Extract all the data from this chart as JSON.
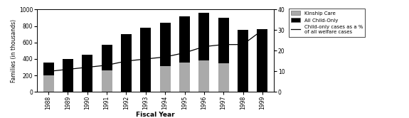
{
  "years": [
    1988,
    1989,
    1990,
    1991,
    1992,
    1993,
    1994,
    1995,
    1996,
    1997,
    1998,
    1999
  ],
  "all_child_only": [
    360,
    400,
    450,
    570,
    700,
    780,
    840,
    920,
    960,
    900,
    750,
    760
  ],
  "kinship_care": [
    205,
    0,
    0,
    260,
    0,
    0,
    310,
    355,
    380,
    345,
    0,
    0
  ],
  "pct_line": [
    10,
    11,
    12,
    13,
    15,
    16,
    17,
    19,
    22,
    23,
    23,
    30
  ],
  "bar_width": 0.55,
  "ylim_left": [
    0,
    1000
  ],
  "ylim_right": [
    0,
    40
  ],
  "yticks_left": [
    0,
    200,
    400,
    600,
    800,
    1000
  ],
  "yticks_right": [
    0,
    10,
    20,
    30,
    40
  ],
  "xlabel": "Fiscal Year",
  "ylabel_left": "Families (in thousands)",
  "color_all_child": "#000000",
  "color_kinship": "#aaaaaa",
  "color_line": "#000000",
  "legend_labels": [
    "Kinship Care",
    "All Child-Only",
    "Child-only cases as a %\nof all welfare cases"
  ]
}
